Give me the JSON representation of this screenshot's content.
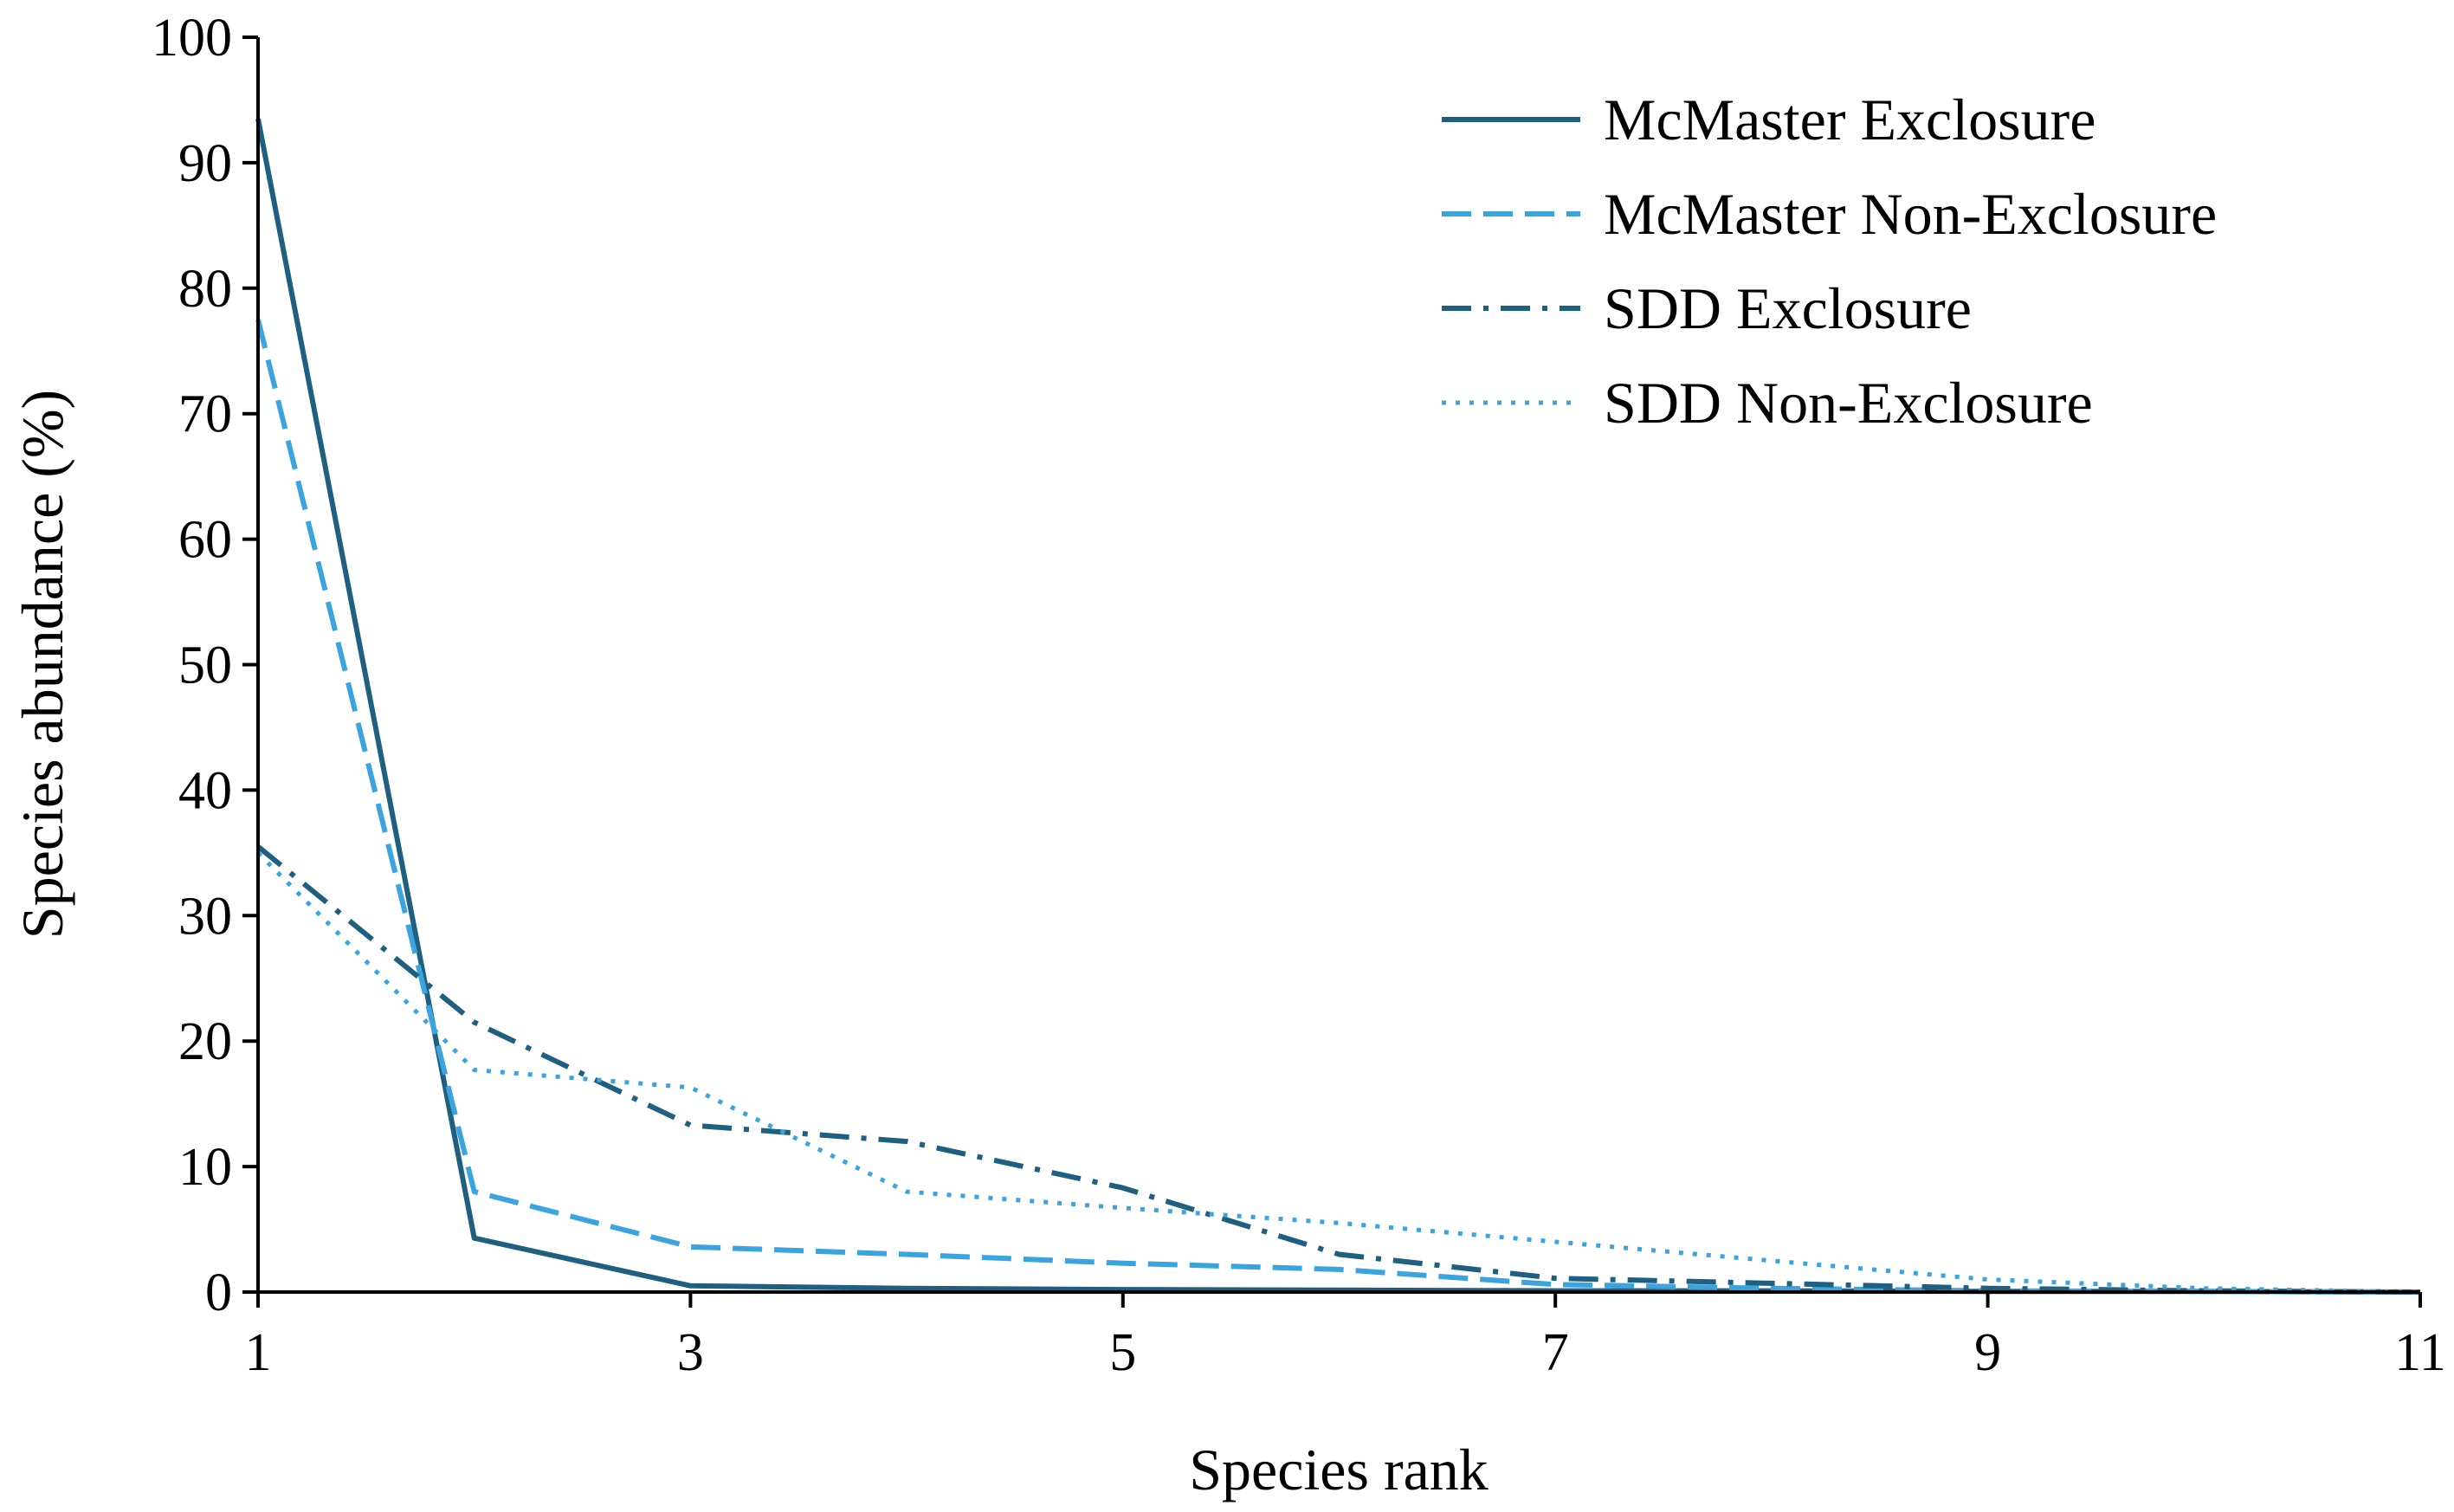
{
  "chart_data": {
    "type": "line",
    "title": "",
    "xlabel": "Species rank",
    "ylabel": "Species abundance (%)",
    "xlim": [
      1,
      11
    ],
    "ylim": [
      0,
      100
    ],
    "x_ticks": [
      1,
      3,
      5,
      7,
      9,
      11
    ],
    "y_ticks": [
      0,
      10,
      20,
      30,
      40,
      50,
      60,
      70,
      80,
      90,
      100
    ],
    "grid": false,
    "legend_position": "top-right",
    "x": [
      1,
      2,
      3,
      4,
      5,
      6,
      7,
      8,
      9,
      10,
      11
    ],
    "series": [
      {
        "name": "McMaster Exclosure",
        "color": "#1f5f7f",
        "style": "solid",
        "values": [
          93.5,
          4.3,
          0.5,
          0.3,
          0.2,
          0.15,
          0.1,
          0.1,
          0.05,
          0.05,
          0
        ]
      },
      {
        "name": "McMaster Non-Exclosure",
        "color": "#3ba3dd",
        "style": "dashed",
        "values": [
          77.5,
          8.0,
          3.6,
          3.0,
          2.3,
          1.8,
          0.6,
          0.3,
          0.1,
          0.05,
          0
        ]
      },
      {
        "name": "SDD Exclosure",
        "color": "#1f5f7f",
        "style": "dashdot",
        "values": [
          35.5,
          21.5,
          13.3,
          12.0,
          8.3,
          3.0,
          1.1,
          0.7,
          0.3,
          0.1,
          0
        ]
      },
      {
        "name": "SDD Non-Exclosure",
        "color": "#3ba3dd",
        "style": "dotted",
        "values": [
          35.0,
          17.7,
          16.3,
          8.0,
          6.7,
          5.5,
          4.0,
          2.5,
          1.0,
          0.3,
          0
        ]
      }
    ]
  }
}
